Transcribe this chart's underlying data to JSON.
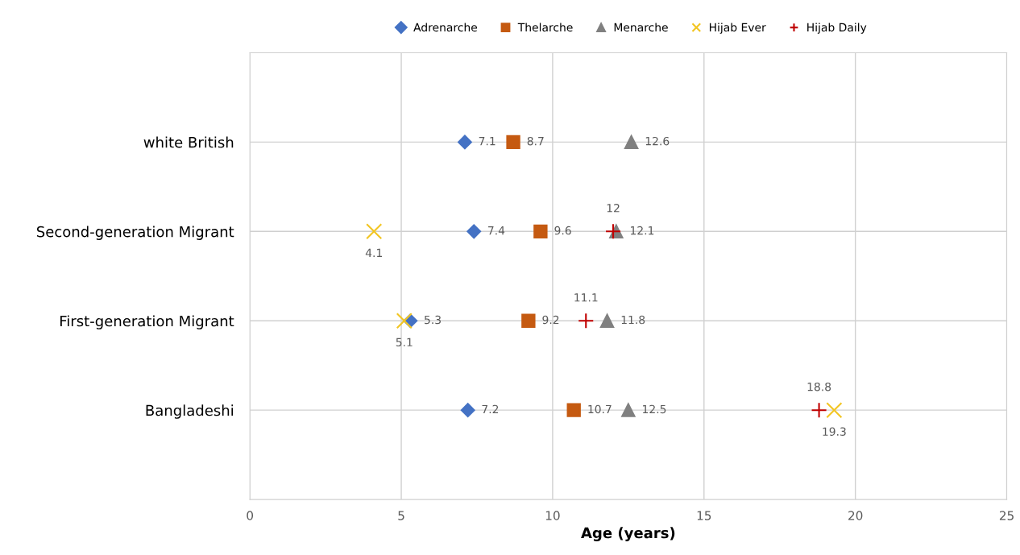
{
  "chart_data": {
    "type": "scatter",
    "orientation": "horizontal",
    "xlabel": "Age (years)",
    "categories": [
      "white British",
      "Second-generation Migrant",
      "First-generation Migrant",
      "Bangladeshi"
    ],
    "series": [
      {
        "name": "Adrenarche",
        "color": "#4472c4",
        "marker": "diamond",
        "values": [
          7.1,
          7.4,
          5.3,
          7.2
        ]
      },
      {
        "name": "Thelarche",
        "color": "#c55a11",
        "marker": "square",
        "values": [
          8.7,
          9.6,
          9.2,
          10.7
        ]
      },
      {
        "name": "Menarche",
        "color": "#808080",
        "marker": "triangle",
        "values": [
          12.6,
          12.1,
          11.8,
          12.5
        ]
      },
      {
        "name": "Hijab Ever",
        "color": "#f2c522",
        "marker": "cross",
        "values": [
          null,
          4.1,
          5.1,
          19.3
        ]
      },
      {
        "name": "Hijab Daily",
        "color": "#c00000",
        "marker": "plus",
        "values": [
          null,
          12,
          11.1,
          18.8
        ]
      }
    ],
    "xlim": [
      0,
      25
    ],
    "xticks": [
      0,
      5,
      10,
      15,
      20,
      25
    ],
    "grid": true,
    "legend": "top",
    "data_labels": true
  }
}
